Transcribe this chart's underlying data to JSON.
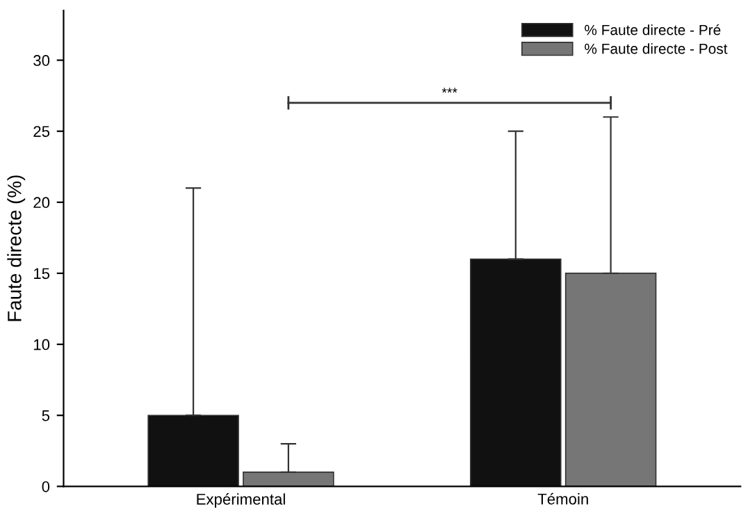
{
  "chart_data": {
    "type": "bar",
    "ylabel": "Faute directe (%)",
    "categories": [
      "Expérimental",
      "Témoin"
    ],
    "series": [
      {
        "name": "% Faute directe - Pré",
        "color": "#111111",
        "values": [
          5,
          16
        ],
        "errors": [
          [
            5,
            21
          ],
          [
            16,
            25
          ]
        ]
      },
      {
        "name": "% Faute directe - Post",
        "color": "#767676",
        "values": [
          1,
          15
        ],
        "errors": [
          [
            1,
            3
          ],
          [
            15,
            26
          ]
        ]
      }
    ],
    "ylim": [
      0,
      33.5
    ],
    "yticks": [
      0,
      5,
      10,
      15,
      20,
      25,
      30
    ],
    "legend": "top right",
    "grid": false,
    "annotations": [
      "***"
    ]
  }
}
